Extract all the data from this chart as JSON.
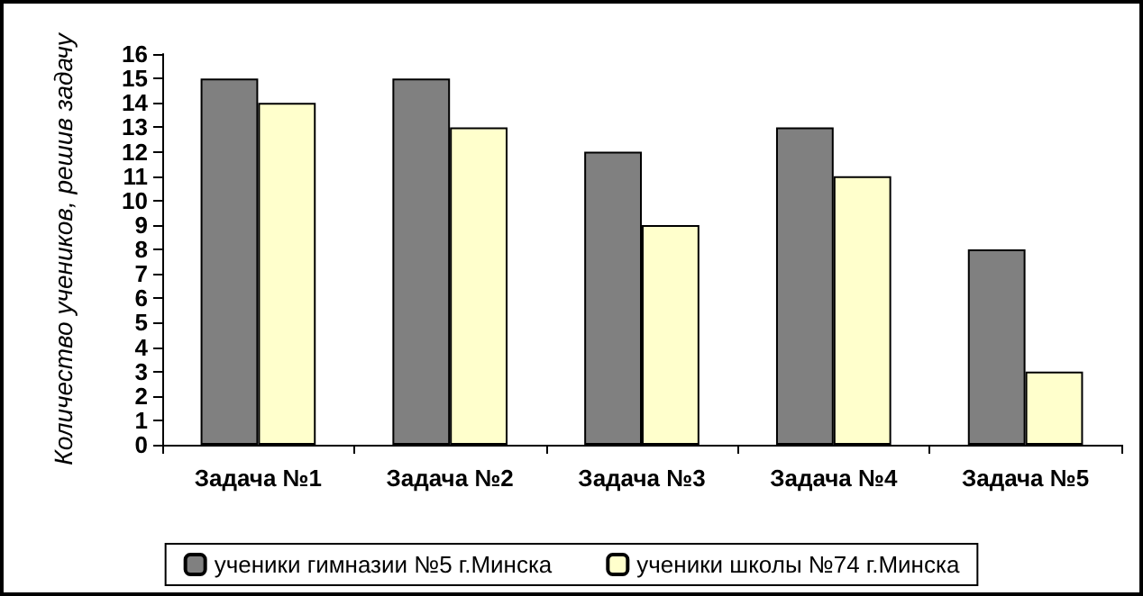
{
  "chart_data": {
    "type": "bar",
    "ylabel": "Количество учеников, решив задачу",
    "categories": [
      "Задача №1",
      "Задача №2",
      "Задача №3",
      "Задача №4",
      "Задача №5"
    ],
    "series": [
      {
        "name": "ученики гимназии №5 г.Минска",
        "color": "#808080",
        "values": [
          15,
          15,
          12,
          13,
          8
        ]
      },
      {
        "name": "ученики школы №74 г.Минска",
        "color": "#ffffcc",
        "values": [
          14,
          13,
          9,
          11,
          3
        ]
      }
    ],
    "ylim": [
      0,
      16
    ],
    "yticks": [
      0,
      1,
      2,
      3,
      4,
      5,
      6,
      7,
      8,
      9,
      10,
      11,
      12,
      13,
      14,
      15,
      16
    ],
    "grid": false,
    "legend": "bottom"
  }
}
